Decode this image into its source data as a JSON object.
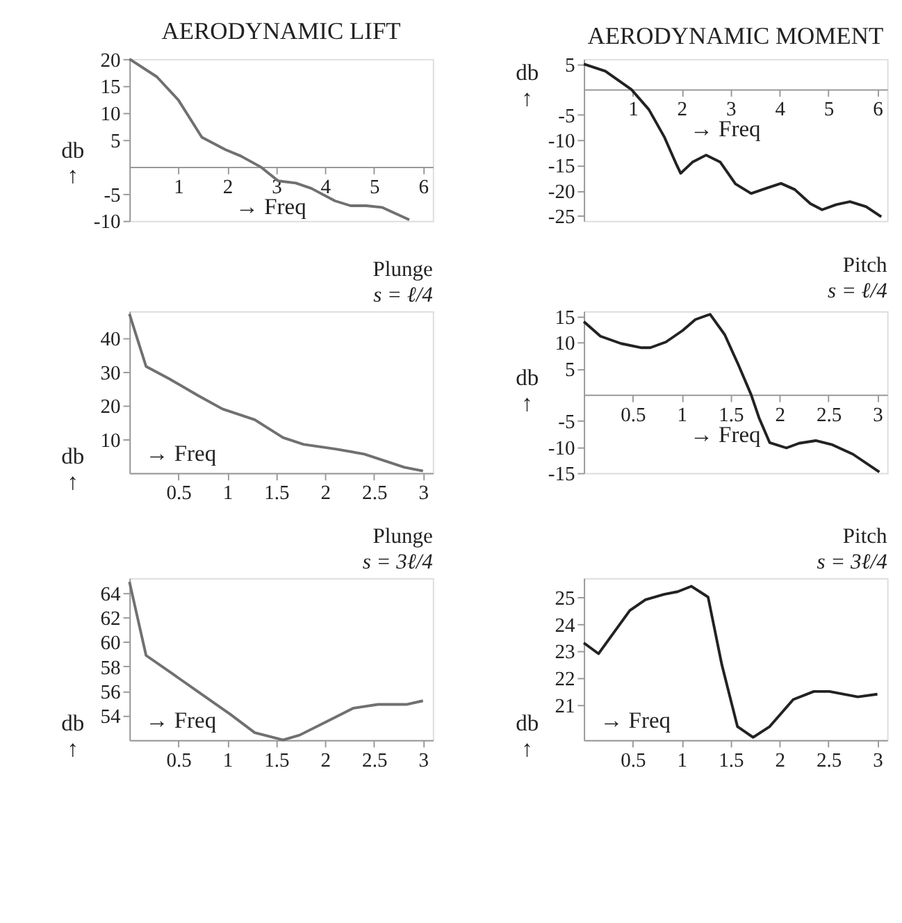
{
  "chart_data": [
    {
      "type": "line",
      "title": "AERODYNAMIC LIFT",
      "xlabel": "→ Freq",
      "ylabel": "db ↑",
      "xlim": [
        0,
        6.2
      ],
      "ylim": [
        -10,
        20
      ],
      "xticks": [
        1,
        2,
        3,
        4,
        5,
        6
      ],
      "yticks": [
        -10,
        -5,
        5,
        10,
        15,
        20
      ],
      "grid": false,
      "marker": "none",
      "line_style": "solid",
      "x": [
        0,
        0.56,
        1,
        1.48,
        1.96,
        2.28,
        2.68,
        3.04,
        3.4,
        3.72,
        4.2,
        4.52,
        4.84,
        5.16,
        5.72
      ],
      "series": [
        {
          "color": "#707070",
          "values": [
            20,
            16.7,
            12.4,
            5.5,
            3.2,
            2.0,
            0,
            -2.6,
            -3.0,
            -4.0,
            -6.3,
            -7.2,
            -7.2,
            -7.5,
            -9.8
          ]
        }
      ]
    },
    {
      "type": "line",
      "title": "AERODYNAMIC MOMENT",
      "xlabel": "→ Freq",
      "ylabel": "db ↑",
      "xlim": [
        0,
        6.2
      ],
      "ylim": [
        -26,
        6
      ],
      "xticks": [
        1,
        2,
        3,
        4,
        5,
        6
      ],
      "yticks": [
        -25,
        -20,
        -15,
        -10,
        -5,
        5
      ],
      "grid": false,
      "marker": "none",
      "line_style": "solid",
      "x": [
        0,
        0.44,
        0.97,
        1.33,
        1.65,
        1.9,
        1.98,
        2.22,
        2.5,
        2.79,
        3.1,
        3.42,
        3.75,
        4.03,
        4.31,
        4.63,
        4.87,
        5.16,
        5.44,
        5.77,
        6.08
      ],
      "series": [
        {
          "color": "#222222",
          "values": [
            5,
            3.6,
            0,
            -4,
            -9.5,
            -15,
            -16.6,
            -14.4,
            -13,
            -14.4,
            -18.7,
            -20.6,
            -19.5,
            -18.6,
            -19.8,
            -22.6,
            -23.8,
            -22.8,
            -22.2,
            -23.2,
            -25.2
          ]
        }
      ]
    },
    {
      "type": "line",
      "title": "Plunge",
      "subtitle": "s = ℓ/4",
      "xlabel": "→ Freq",
      "ylabel": "db ↑",
      "xlim": [
        0,
        3.1
      ],
      "ylim": [
        0,
        48
      ],
      "xticks": [
        0.5,
        1,
        1.5,
        2,
        2.5,
        3
      ],
      "yticks": [
        10,
        20,
        30,
        40
      ],
      "grid": false,
      "marker": "none",
      "line_style": "solid",
      "x": [
        0,
        0.17,
        0.41,
        0.7,
        0.95,
        1.28,
        1.57,
        1.78,
        2.11,
        2.4,
        2.6,
        2.81,
        3.0
      ],
      "series": [
        {
          "color": "#707070",
          "values": [
            47.2,
            31.6,
            27.9,
            23,
            19,
            15.8,
            10.5,
            8.5,
            7.1,
            5.6,
            3.7,
            1.7,
            0.6
          ]
        }
      ]
    },
    {
      "type": "line",
      "title": "Pitch",
      "subtitle": "s = ℓ/4",
      "xlabel": "→ Freq",
      "ylabel": "db ↑",
      "xlim": [
        0,
        3.1
      ],
      "ylim": [
        -15,
        16
      ],
      "xticks": [
        0.5,
        1,
        1.5,
        2,
        2.5,
        3
      ],
      "yticks": [
        -15,
        -10,
        -5,
        5,
        10,
        15
      ],
      "grid": false,
      "marker": "none",
      "line_style": "solid",
      "x": [
        0,
        0.17,
        0.38,
        0.59,
        0.68,
        0.84,
        1.01,
        1.14,
        1.29,
        1.44,
        1.58,
        1.71,
        1.79,
        1.9,
        2.07,
        2.2,
        2.37,
        2.54,
        2.75,
        3.02
      ],
      "series": [
        {
          "color": "#222222",
          "values": [
            14,
            11.2,
            9.8,
            9.0,
            9.0,
            10.1,
            12.3,
            14.4,
            15.4,
            11.5,
            5.7,
            0,
            -4.4,
            -9.2,
            -10.2,
            -9.3,
            -8.8,
            -9.6,
            -11.4,
            -14.8
          ]
        }
      ]
    },
    {
      "type": "line",
      "title": "Plunge",
      "subtitle": "s = 3ℓ/4",
      "xlabel": "→ Freq",
      "ylabel": "db ↑",
      "xlim": [
        0,
        3.1
      ],
      "ylim": [
        52,
        65.2
      ],
      "xticks": [
        0.5,
        1,
        1.5,
        2,
        2.5,
        3
      ],
      "yticks": [
        54,
        56,
        58,
        60,
        62,
        64
      ],
      "grid": false,
      "marker": "none",
      "line_style": "solid",
      "x": [
        0,
        0.17,
        0.44,
        0.69,
        1.03,
        1.28,
        1.57,
        1.74,
        1.99,
        2.29,
        2.54,
        2.83,
        3.0
      ],
      "series": [
        {
          "color": "#707070",
          "values": [
            64.9,
            58.9,
            57.4,
            56.0,
            54.1,
            52.6,
            52.0,
            52.4,
            53.4,
            54.6,
            54.9,
            54.9,
            55.2
          ]
        }
      ]
    },
    {
      "type": "line",
      "title": "Pitch",
      "subtitle": "s = 3ℓ/4",
      "xlabel": "→ Freq",
      "ylabel": "db ↑",
      "xlim": [
        0,
        3.1
      ],
      "ylim": [
        19.7,
        25.7
      ],
      "xticks": [
        0.5,
        1,
        1.5,
        2,
        2.5,
        3
      ],
      "yticks": [
        21,
        22,
        23,
        24,
        25
      ],
      "grid": false,
      "marker": "none",
      "line_style": "solid",
      "x": [
        0,
        0.15,
        0.29,
        0.47,
        0.63,
        0.82,
        0.96,
        1.1,
        1.27,
        1.41,
        1.57,
        1.73,
        1.9,
        2.14,
        2.35,
        2.51,
        2.8,
        3.0
      ],
      "series": [
        {
          "color": "#222222",
          "values": [
            23.3,
            22.9,
            23.6,
            24.5,
            24.9,
            25.1,
            25.2,
            25.4,
            25.0,
            22.5,
            20.2,
            19.8,
            20.2,
            21.2,
            21.5,
            21.5,
            21.3,
            21.4
          ]
        }
      ]
    }
  ]
}
